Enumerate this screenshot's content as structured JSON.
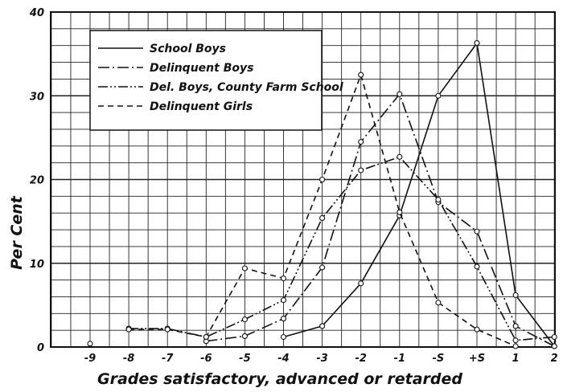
{
  "chart_data": {
    "type": "line",
    "title": "",
    "xlabel": "Grades satisfactory, advanced or retarded",
    "ylabel": "Per Cent",
    "categories": [
      "-9",
      "-8",
      "-7",
      "-6",
      "-5",
      "-4",
      "-3",
      "-2",
      "-1",
      "-S",
      "+S",
      "1",
      "2"
    ],
    "ylim": [
      0,
      40
    ],
    "yticks": [
      0,
      10,
      20,
      30,
      40
    ],
    "grid": true,
    "legend_position": "top-left",
    "series": [
      {
        "name": "School Boys",
        "dash": "solid",
        "values": [
          null,
          null,
          null,
          null,
          null,
          1.2,
          2.5,
          7.6,
          15.7,
          30.0,
          36.3,
          6.2,
          0.1
        ]
      },
      {
        "name": "Delinquent Boys",
        "dash": "dash-dot",
        "values": [
          0.4,
          null,
          null,
          0.7,
          1.3,
          3.4,
          9.5,
          24.5,
          30.2,
          17.3,
          13.8,
          2.5,
          0.1
        ]
      },
      {
        "name": "Del. Boys, County Farm School",
        "dash": "dash-dot-dot",
        "values": [
          null,
          2.2,
          2.2,
          1.2,
          3.3,
          5.6,
          15.4,
          21.1,
          22.7,
          17.6,
          9.6,
          0.8,
          1.2
        ]
      },
      {
        "name": "Delinquent Girls",
        "dash": "dashed",
        "values": [
          null,
          2.1,
          2.1,
          1.2,
          9.4,
          8.2,
          20.0,
          32.5,
          16.1,
          5.3,
          2.1,
          0.1,
          null
        ]
      }
    ]
  }
}
